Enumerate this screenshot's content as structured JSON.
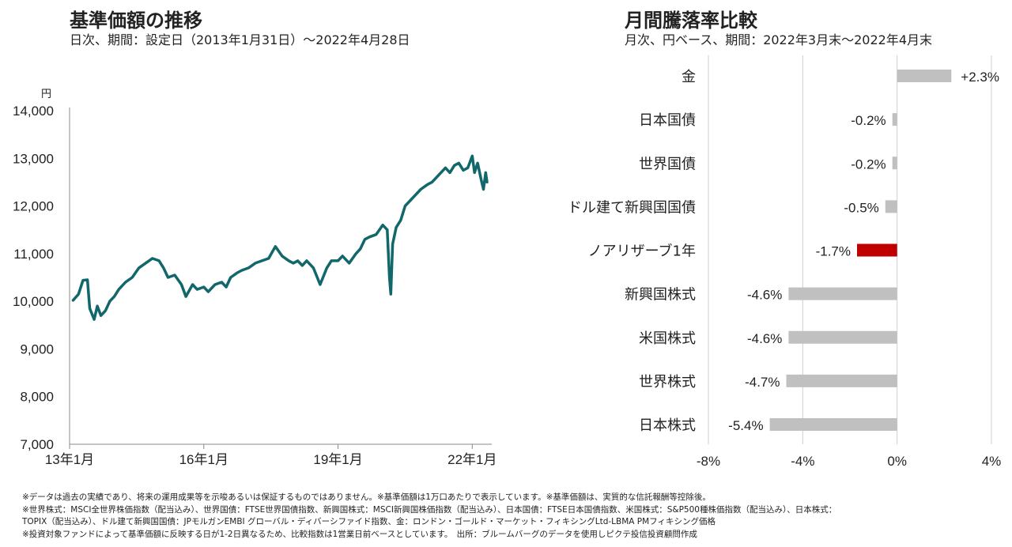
{
  "left_panel": {
    "title": "基準価額の推移",
    "subtitle": "日次、期間：設定日（2013年1月31日）～2022年4月28日"
  },
  "right_panel": {
    "title": "月間騰落率比較",
    "subtitle": "月次、円ベース、期間：2022年3月末～2022年4月末"
  },
  "chart_data": [
    {
      "type": "line",
      "title": "基準価額の推移",
      "ylabel": "円",
      "ylim": [
        7000,
        14000
      ],
      "yticks": [
        7000,
        8000,
        9000,
        10000,
        11000,
        12000,
        13000,
        14000
      ],
      "ytick_labels": [
        "7,000",
        "8,000",
        "9,000",
        "10,000",
        "11,000",
        "12,000",
        "13,000",
        "14,000"
      ],
      "xlim": [
        2013.0,
        2022.33
      ],
      "xticks": [
        2013.0,
        2016.0,
        2019.0,
        2022.0
      ],
      "xtick_labels": [
        "13年1月",
        "16年1月",
        "19年1月",
        "22年1月"
      ],
      "grid": false,
      "line_color": "#12676b",
      "series": [
        {
          "x": [
            2013.08,
            2013.2,
            2013.3,
            2013.4,
            2013.45,
            2013.55,
            2013.62,
            2013.7,
            2013.8,
            2013.9,
            2014.0,
            2014.1,
            2014.25,
            2014.4,
            2014.55,
            2014.7,
            2014.85,
            2015.0,
            2015.1,
            2015.2,
            2015.35,
            2015.5,
            2015.6,
            2015.75,
            2015.85,
            2016.0,
            2016.1,
            2016.25,
            2016.4,
            2016.5,
            2016.6,
            2016.75,
            2016.85,
            2017.0,
            2017.15,
            2017.3,
            2017.45,
            2017.6,
            2017.75,
            2017.9,
            2018.0,
            2018.1,
            2018.2,
            2018.3,
            2018.45,
            2018.6,
            2018.75,
            2018.85,
            2019.0,
            2019.1,
            2019.25,
            2019.4,
            2019.5,
            2019.6,
            2019.7,
            2019.85,
            2020.0,
            2020.1,
            2020.15,
            2020.18,
            2020.22,
            2020.3,
            2020.4,
            2020.5,
            2020.6,
            2020.75,
            2020.85,
            2021.0,
            2021.1,
            2021.25,
            2021.4,
            2021.5,
            2021.6,
            2021.7,
            2021.8,
            2021.9,
            2022.0,
            2022.05,
            2022.12,
            2022.2,
            2022.25,
            2022.3,
            2022.33
          ],
          "y": [
            10020,
            10150,
            10440,
            10450,
            9850,
            9620,
            9900,
            9700,
            9800,
            10000,
            10100,
            10250,
            10400,
            10500,
            10700,
            10800,
            10900,
            10850,
            10700,
            10500,
            10550,
            10350,
            10100,
            10350,
            10250,
            10300,
            10200,
            10350,
            10400,
            10300,
            10500,
            10600,
            10650,
            10700,
            10800,
            10850,
            10900,
            11150,
            10950,
            10850,
            10800,
            10850,
            10750,
            10850,
            10700,
            10350,
            10700,
            10850,
            10850,
            10950,
            10800,
            11000,
            11100,
            11300,
            11350,
            11400,
            11600,
            11500,
            10500,
            10150,
            11200,
            11550,
            11700,
            12000,
            12100,
            12250,
            12350,
            12450,
            12500,
            12650,
            12800,
            12700,
            12850,
            12900,
            12750,
            12800,
            13050,
            12700,
            12900,
            12550,
            12350,
            12700,
            12500
          ]
        }
      ]
    },
    {
      "type": "bar",
      "orientation": "horizontal",
      "title": "月間騰落率比較",
      "categories": [
        "金",
        "日本国債",
        "世界国債",
        "ドル建て新興国国債",
        "ノアリザーブ1年",
        "新興国株式",
        "米国株式",
        "世界株式",
        "日本株式"
      ],
      "values": [
        2.3,
        -0.2,
        -0.2,
        -0.5,
        -1.7,
        -4.6,
        -4.6,
        -4.7,
        -5.4
      ],
      "value_labels": [
        "+2.3%",
        "-0.2%",
        "-0.2%",
        "-0.5%",
        "-1.7%",
        "-4.6%",
        "-4.6%",
        "-4.7%",
        "-5.4%"
      ],
      "highlight": "ノアリザーブ1年",
      "bar_color": "#c0c0c0",
      "highlight_color": "#c00000",
      "xlim": [
        -8,
        4
      ],
      "xticks": [
        -8,
        -4,
        0,
        4
      ],
      "xtick_labels": [
        "-8%",
        "-4%",
        "0%",
        "4%"
      ],
      "grid": true
    }
  ],
  "notes": [
    "※データは過去の実績であり、将来の運用成果等を示唆あるいは保証するものではありません。※基準価額は1万口あたりで表示しています。※基準価額は、実質的な信託報酬等控除後。",
    "※世界株式：MSCI全世界株価指数（配当込み）、世界国債：FTSE世界国債指数、新興国株式：MSCI新興国株価指数（配当込み）、日本国債：FTSE日本国債指数、米国株式：S&P500種株価指数（配当込み）、日本株式：",
    "TOPIX（配当込み）、ドル建て新興国国債：JPモルガンEMBI グローバル・ディバーシファイド指数、金：ロンドン・ゴールド・マーケット・フィキシングLtd-LBMA PMフィキシング価格",
    "※投資対象ファンドによって基準価額に反映する日が1-2日異なるため、比較指数は1営業日前ベースとしています。　出所：ブルームバーグのデータを使用しピクテ投信投資顧問作成"
  ]
}
